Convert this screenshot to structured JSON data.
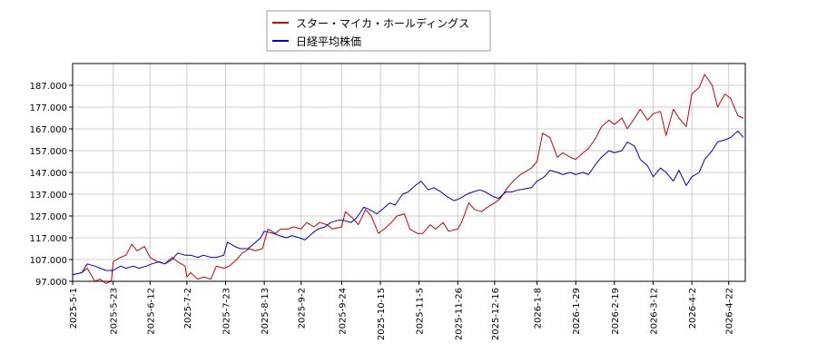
{
  "chart_data": {
    "type": "line",
    "title": "",
    "xlabel": "",
    "ylabel": "",
    "ylim": [
      97,
      197
    ],
    "yticks": [
      "97.000",
      "107.000",
      "117.000",
      "127.000",
      "137.000",
      "147.000",
      "157.000",
      "167.000",
      "177.000",
      "187.000"
    ],
    "xlim": [
      "2025-05-01",
      "2026-05-01"
    ],
    "xticks": [
      "2025-5-1",
      "2025-5-23",
      "2025-6-12",
      "2025-7-2",
      "2025-7-23",
      "2025-8-13",
      "2025-9-2",
      "2025-9-24",
      "2025-10-15",
      "2025-11-5",
      "2025-11-26",
      "2025-12-16",
      "2026-1-8",
      "2026-1-29",
      "2026-2-19",
      "2026-3-12",
      "2026-4-2",
      "2026-4-22"
    ],
    "grid": true,
    "legend": "top-center",
    "series": [
      {
        "name": "スター・マイカ・ホールディングス",
        "color": "#cc0000",
        "points": [
          [
            "2025-05-01",
            100
          ],
          [
            "2025-05-06",
            101
          ],
          [
            "2025-05-09",
            103
          ],
          [
            "2025-05-13",
            97
          ],
          [
            "2025-05-16",
            98
          ],
          [
            "2025-05-19",
            96
          ],
          [
            "2025-05-22",
            97
          ],
          [
            "2025-05-23",
            106
          ],
          [
            "2025-05-27",
            108
          ],
          [
            "2025-05-30",
            109
          ],
          [
            "2025-06-02",
            114
          ],
          [
            "2025-06-05",
            111
          ],
          [
            "2025-06-09",
            113
          ],
          [
            "2025-06-12",
            108
          ],
          [
            "2025-06-16",
            106
          ],
          [
            "2025-06-20",
            105
          ],
          [
            "2025-06-24",
            108
          ],
          [
            "2025-06-27",
            106
          ],
          [
            "2025-07-01",
            104
          ],
          [
            "2025-07-02",
            99
          ],
          [
            "2025-07-04",
            101
          ],
          [
            "2025-07-08",
            98
          ],
          [
            "2025-07-11",
            99
          ],
          [
            "2025-07-15",
            98
          ],
          [
            "2025-07-18",
            104
          ],
          [
            "2025-07-22",
            103
          ],
          [
            "2025-07-25",
            104
          ],
          [
            "2025-07-29",
            107
          ],
          [
            "2025-08-01",
            110
          ],
          [
            "2025-08-05",
            112
          ],
          [
            "2025-08-08",
            111
          ],
          [
            "2025-08-12",
            112
          ],
          [
            "2025-08-15",
            121
          ],
          [
            "2025-08-19",
            119
          ],
          [
            "2025-08-22",
            121
          ],
          [
            "2025-08-26",
            121
          ],
          [
            "2025-08-29",
            122
          ],
          [
            "2025-09-02",
            121
          ],
          [
            "2025-09-05",
            124
          ],
          [
            "2025-09-09",
            122
          ],
          [
            "2025-09-12",
            124
          ],
          [
            "2025-09-16",
            123
          ],
          [
            "2025-09-19",
            121
          ],
          [
            "2025-09-24",
            122
          ],
          [
            "2025-09-26",
            129
          ],
          [
            "2025-09-30",
            126
          ],
          [
            "2025-10-03",
            123
          ],
          [
            "2025-10-07",
            130
          ],
          [
            "2025-10-10",
            127
          ],
          [
            "2025-10-14",
            119
          ],
          [
            "2025-10-17",
            121
          ],
          [
            "2025-10-21",
            124
          ],
          [
            "2025-10-24",
            127
          ],
          [
            "2025-10-28",
            128
          ],
          [
            "2025-10-31",
            121
          ],
          [
            "2025-11-04",
            119
          ],
          [
            "2025-11-07",
            119
          ],
          [
            "2025-11-11",
            123
          ],
          [
            "2025-11-14",
            121
          ],
          [
            "2025-11-18",
            124
          ],
          [
            "2025-11-21",
            120
          ],
          [
            "2025-11-26",
            121
          ],
          [
            "2025-11-28",
            124
          ],
          [
            "2025-12-02",
            133
          ],
          [
            "2025-12-05",
            130
          ],
          [
            "2025-12-09",
            129
          ],
          [
            "2025-12-12",
            131
          ],
          [
            "2025-12-16",
            133
          ],
          [
            "2025-12-19",
            135
          ],
          [
            "2025-12-23",
            140
          ],
          [
            "2025-12-26",
            143
          ],
          [
            "2025-12-30",
            146
          ],
          [
            "2026-01-05",
            149
          ],
          [
            "2026-01-08",
            152
          ],
          [
            "2026-01-11",
            165
          ],
          [
            "2026-01-15",
            163
          ],
          [
            "2026-01-19",
            154
          ],
          [
            "2026-01-22",
            156
          ],
          [
            "2026-01-26",
            154
          ],
          [
            "2026-01-29",
            153
          ],
          [
            "2026-02-02",
            156
          ],
          [
            "2026-02-05",
            158
          ],
          [
            "2026-02-09",
            163
          ],
          [
            "2026-02-12",
            168
          ],
          [
            "2026-02-16",
            171
          ],
          [
            "2026-02-19",
            169
          ],
          [
            "2026-02-23",
            172
          ],
          [
            "2026-02-26",
            167
          ],
          [
            "2026-03-02",
            172
          ],
          [
            "2026-03-05",
            176
          ],
          [
            "2026-03-09",
            171
          ],
          [
            "2026-03-12",
            174
          ],
          [
            "2026-03-16",
            175
          ],
          [
            "2026-03-19",
            164
          ],
          [
            "2026-03-23",
            176
          ],
          [
            "2026-03-26",
            172
          ],
          [
            "2026-03-30",
            168
          ],
          [
            "2026-04-02",
            183
          ],
          [
            "2026-04-06",
            186
          ],
          [
            "2026-04-09",
            192
          ],
          [
            "2026-04-13",
            187
          ],
          [
            "2026-04-16",
            177
          ],
          [
            "2026-04-20",
            183
          ],
          [
            "2026-04-23",
            181
          ],
          [
            "2026-04-27",
            173
          ],
          [
            "2026-04-30",
            172
          ]
        ]
      },
      {
        "name": "日経平均株価",
        "color": "#0000cc",
        "points": [
          [
            "2025-05-01",
            100
          ],
          [
            "2025-05-06",
            101
          ],
          [
            "2025-05-09",
            105
          ],
          [
            "2025-05-13",
            104
          ],
          [
            "2025-05-16",
            103
          ],
          [
            "2025-05-19",
            102
          ],
          [
            "2025-05-23",
            102
          ],
          [
            "2025-05-27",
            104
          ],
          [
            "2025-05-30",
            103
          ],
          [
            "2025-06-03",
            104
          ],
          [
            "2025-06-06",
            103
          ],
          [
            "2025-06-10",
            104
          ],
          [
            "2025-06-13",
            105
          ],
          [
            "2025-06-17",
            106
          ],
          [
            "2025-06-20",
            105
          ],
          [
            "2025-06-24",
            107
          ],
          [
            "2025-06-27",
            110
          ],
          [
            "2025-07-01",
            109
          ],
          [
            "2025-07-04",
            109
          ],
          [
            "2025-07-08",
            108
          ],
          [
            "2025-07-11",
            109
          ],
          [
            "2025-07-15",
            108
          ],
          [
            "2025-07-18",
            108
          ],
          [
            "2025-07-22",
            109
          ],
          [
            "2025-07-24",
            115
          ],
          [
            "2025-07-28",
            113
          ],
          [
            "2025-07-31",
            112
          ],
          [
            "2025-08-04",
            112
          ],
          [
            "2025-08-07",
            114
          ],
          [
            "2025-08-11",
            117
          ],
          [
            "2025-08-13",
            120
          ],
          [
            "2025-08-18",
            119
          ],
          [
            "2025-08-21",
            118
          ],
          [
            "2025-08-25",
            117
          ],
          [
            "2025-08-28",
            118
          ],
          [
            "2025-09-01",
            117
          ],
          [
            "2025-09-04",
            116
          ],
          [
            "2025-09-08",
            119
          ],
          [
            "2025-09-11",
            121
          ],
          [
            "2025-09-15",
            122
          ],
          [
            "2025-09-18",
            124
          ],
          [
            "2025-09-22",
            125
          ],
          [
            "2025-09-25",
            125
          ],
          [
            "2025-09-29",
            124
          ],
          [
            "2025-10-02",
            126
          ],
          [
            "2025-10-06",
            131
          ],
          [
            "2025-10-09",
            130
          ],
          [
            "2025-10-13",
            128
          ],
          [
            "2025-10-16",
            130
          ],
          [
            "2025-10-20",
            133
          ],
          [
            "2025-10-23",
            132
          ],
          [
            "2025-10-27",
            137
          ],
          [
            "2025-10-30",
            138
          ],
          [
            "2025-11-03",
            141
          ],
          [
            "2025-11-06",
            143
          ],
          [
            "2025-11-10",
            139
          ],
          [
            "2025-11-13",
            140
          ],
          [
            "2025-11-17",
            138
          ],
          [
            "2025-11-20",
            136
          ],
          [
            "2025-11-24",
            134
          ],
          [
            "2025-11-27",
            135
          ],
          [
            "2025-12-01",
            137
          ],
          [
            "2025-12-04",
            138
          ],
          [
            "2025-12-08",
            139
          ],
          [
            "2025-12-11",
            138
          ],
          [
            "2025-12-15",
            136
          ],
          [
            "2025-12-18",
            135
          ],
          [
            "2025-12-22",
            138
          ],
          [
            "2025-12-25",
            138
          ],
          [
            "2025-12-29",
            139
          ],
          [
            "2026-01-05",
            140
          ],
          [
            "2026-01-08",
            143
          ],
          [
            "2026-01-12",
            145
          ],
          [
            "2026-01-15",
            148
          ],
          [
            "2026-01-19",
            147
          ],
          [
            "2026-01-22",
            146
          ],
          [
            "2026-01-26",
            147
          ],
          [
            "2026-01-29",
            146
          ],
          [
            "2026-02-02",
            147
          ],
          [
            "2026-02-05",
            146
          ],
          [
            "2026-02-09",
            151
          ],
          [
            "2026-02-12",
            154
          ],
          [
            "2026-02-16",
            157
          ],
          [
            "2026-02-19",
            156
          ],
          [
            "2026-02-23",
            157
          ],
          [
            "2026-02-26",
            161
          ],
          [
            "2026-03-02",
            159
          ],
          [
            "2026-03-05",
            153
          ],
          [
            "2026-03-09",
            150
          ],
          [
            "2026-03-12",
            145
          ],
          [
            "2026-03-16",
            149
          ],
          [
            "2026-03-19",
            147
          ],
          [
            "2026-03-23",
            143
          ],
          [
            "2026-03-26",
            148
          ],
          [
            "2026-03-30",
            141
          ],
          [
            "2026-04-02",
            145
          ],
          [
            "2026-04-06",
            147
          ],
          [
            "2026-04-09",
            153
          ],
          [
            "2026-04-13",
            157
          ],
          [
            "2026-04-16",
            161
          ],
          [
            "2026-04-20",
            162
          ],
          [
            "2026-04-23",
            163
          ],
          [
            "2026-04-27",
            166
          ],
          [
            "2026-04-30",
            163
          ]
        ]
      }
    ]
  }
}
